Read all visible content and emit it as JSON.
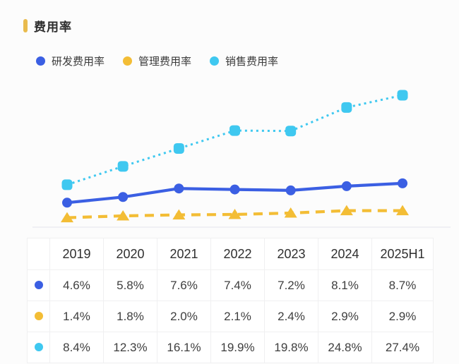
{
  "page": {
    "title": "费用率"
  },
  "colors": {
    "accent_gold": "#E9BB4D",
    "rd_blue": "#3B5FE3",
    "mgmt_yellow": "#F3BD35",
    "sales_cyan": "#3FC8F0",
    "axis_line": "#e8e8ee",
    "table_border": "#f0f0f1"
  },
  "chart_data": {
    "type": "line",
    "title": "费用率",
    "unit": "%",
    "categories": [
      "2019",
      "2020",
      "2021",
      "2022",
      "2023",
      "2024",
      "2025H1"
    ],
    "series": [
      {
        "id": "rd",
        "name": "研发费用率",
        "color": "#3B5FE3",
        "marker": "circle",
        "line_style": "solid",
        "values": [
          4.6,
          5.8,
          7.6,
          7.4,
          7.2,
          8.1,
          8.7
        ]
      },
      {
        "id": "mgmt",
        "name": "管理费用率",
        "color": "#F3BD35",
        "marker": "triangle",
        "line_style": "dashed",
        "values": [
          1.4,
          1.8,
          2.0,
          2.1,
          2.4,
          2.9,
          2.9
        ]
      },
      {
        "id": "sales",
        "name": "销售费用率",
        "color": "#3FC8F0",
        "marker": "square",
        "line_style": "dotted",
        "values": [
          8.4,
          12.3,
          16.1,
          19.9,
          19.8,
          24.8,
          27.4
        ]
      }
    ],
    "ylim": [
      0,
      30
    ],
    "grid": false,
    "x_axis_line": true,
    "y_axis_labels": false,
    "legend_position": "top"
  },
  "table": {
    "headers": [
      "",
      "2019",
      "2020",
      "2021",
      "2022",
      "2023",
      "2024",
      "2025H1"
    ],
    "rows": [
      {
        "series_id": "rd",
        "color": "#3B5FE3",
        "values": [
          "4.6%",
          "5.8%",
          "7.6%",
          "7.4%",
          "7.2%",
          "8.1%",
          "8.7%"
        ]
      },
      {
        "series_id": "mgmt",
        "color": "#F3BD35",
        "values": [
          "1.4%",
          "1.8%",
          "2.0%",
          "2.1%",
          "2.4%",
          "2.9%",
          "2.9%"
        ]
      },
      {
        "series_id": "sales",
        "color": "#3FC8F0",
        "values": [
          "8.4%",
          "12.3%",
          "16.1%",
          "19.9%",
          "19.8%",
          "24.8%",
          "27.4%"
        ]
      }
    ]
  }
}
